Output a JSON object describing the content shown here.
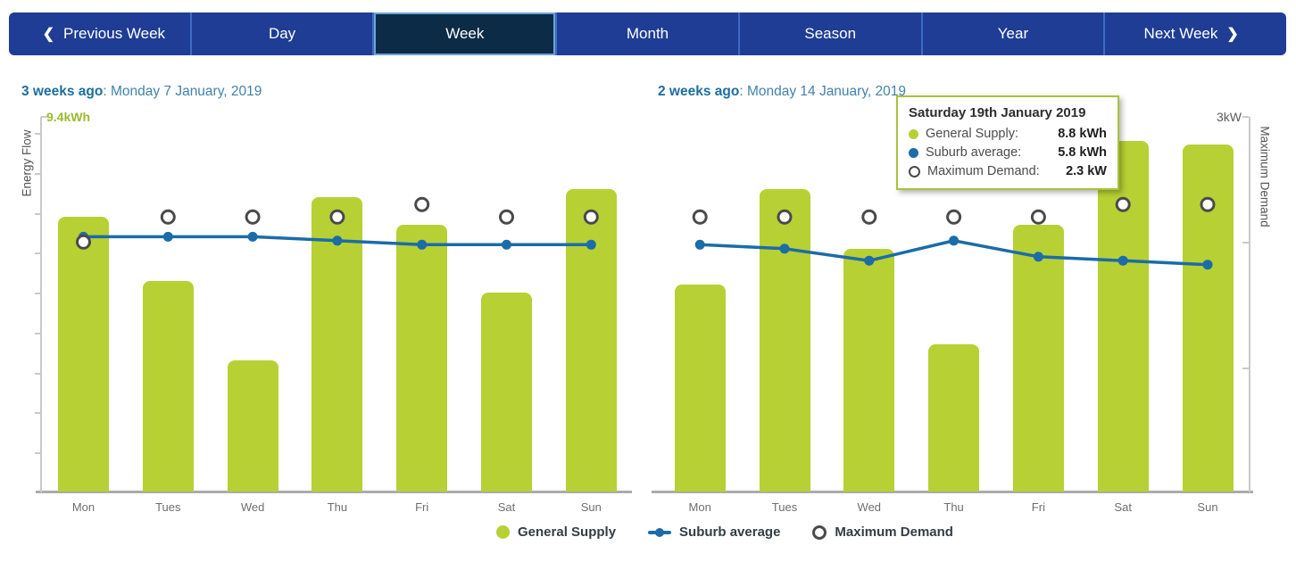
{
  "nav": {
    "tabs": [
      {
        "label": "Previous Week",
        "icon": "chevron-left",
        "selected": false
      },
      {
        "label": "Day",
        "selected": false
      },
      {
        "label": "Week",
        "selected": true
      },
      {
        "label": "Month",
        "selected": false
      },
      {
        "label": "Season",
        "selected": false
      },
      {
        "label": "Year",
        "selected": false
      },
      {
        "label": "Next Week",
        "icon": "chevron-right",
        "selected": false
      }
    ]
  },
  "scales": {
    "energy_max": 9.4,
    "demand_max": 3
  },
  "chart_data": [
    {
      "type": "bar",
      "title_bold": "3 weeks ago",
      "title_rest": ": Monday 7 January, 2019",
      "categories": [
        "Mon",
        "Tues",
        "Wed",
        "Thu",
        "Fri",
        "Sat",
        "Sun"
      ],
      "series": [
        {
          "name": "General Supply",
          "type": "bar",
          "unit": "kWh",
          "values": [
            6.9,
            5.3,
            3.3,
            7.4,
            6.7,
            5.0,
            7.6
          ]
        },
        {
          "name": "Suburb average",
          "type": "line",
          "unit": "kWh",
          "values": [
            6.4,
            6.4,
            6.4,
            6.3,
            6.2,
            6.2,
            6.2
          ]
        },
        {
          "name": "Maximum Demand",
          "type": "scatter",
          "unit": "kW",
          "values": [
            2.0,
            2.2,
            2.2,
            2.2,
            2.3,
            2.2,
            2.2
          ]
        }
      ],
      "left_axis": {
        "label": "Energy Flow",
        "max": 9.4,
        "max_label": "9.4kWh",
        "ylim": [
          0,
          9.4
        ]
      },
      "right_axis": null,
      "grid": false
    },
    {
      "type": "bar",
      "title_bold": "2 weeks ago",
      "title_rest": ": Monday 14 January, 2019",
      "categories": [
        "Mon",
        "Tues",
        "Wed",
        "Thu",
        "Fri",
        "Sat",
        "Sun"
      ],
      "series": [
        {
          "name": "General Supply",
          "type": "bar",
          "unit": "kWh",
          "values": [
            5.2,
            7.6,
            6.1,
            3.7,
            6.7,
            8.8,
            8.7
          ]
        },
        {
          "name": "Suburb average",
          "type": "line",
          "unit": "kWh",
          "values": [
            6.2,
            6.1,
            5.8,
            6.3,
            5.9,
            5.8,
            5.7
          ]
        },
        {
          "name": "Maximum Demand",
          "type": "scatter",
          "unit": "kW",
          "values": [
            2.2,
            2.2,
            2.2,
            2.2,
            2.2,
            2.3,
            2.3
          ]
        }
      ],
      "left_axis": null,
      "right_axis": {
        "label": "Maximum Demand",
        "max": 3,
        "max_label": "3kW",
        "ylim": [
          0,
          3
        ]
      },
      "grid": false
    }
  ],
  "tooltip": {
    "title": "Saturday 19th January 2019",
    "rows": [
      {
        "marker": "general-supply",
        "label": "General Supply:",
        "value": "8.8 kWh"
      },
      {
        "marker": "suburb-average",
        "label": "Suburb average:",
        "value": "5.8 kWh"
      },
      {
        "marker": "maximum-demand",
        "label": "Maximum Demand:",
        "value": "2.3 kW"
      }
    ]
  },
  "legend": {
    "position": "bottom-center",
    "items": [
      {
        "marker": "general-supply",
        "label": "General Supply"
      },
      {
        "marker": "suburb-average",
        "label": "Suburb average"
      },
      {
        "marker": "maximum-demand",
        "label": "Maximum Demand"
      }
    ]
  },
  "colors": {
    "bar_green": "#b7d034",
    "line_blue": "#1b6ca8",
    "demand_ring": "#4a4a4a",
    "nav_bg": "#1f3d94",
    "nav_selected_bg": "#0c2b47",
    "nav_selected_border": "#6ba3d6",
    "title_blue": "#1d6e9f",
    "green_text": "#9cba2d",
    "tooltip_border": "#a9c33c",
    "axis_gray": "#c9c9c9"
  }
}
